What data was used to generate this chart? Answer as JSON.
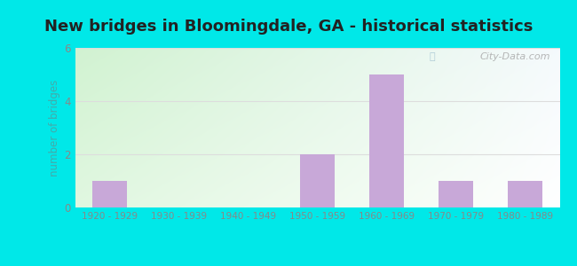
{
  "title": "New bridges in Bloomingdale, GA - historical statistics",
  "categories": [
    "1920 - 1929",
    "1930 - 1939",
    "1940 - 1949",
    "1950 - 1959",
    "1960 - 1969",
    "1970 - 1979",
    "1980 - 1989"
  ],
  "values": [
    1,
    0,
    0,
    2,
    5,
    1,
    1
  ],
  "bar_color": "#c8a8d8",
  "ylabel": "number of bridges",
  "ylabel_color": "#44aaaa",
  "ylim": [
    0,
    6
  ],
  "yticks": [
    0,
    2,
    4,
    6
  ],
  "outer_bg": "#00e8e8",
  "plot_bg_topleft": [
    0.82,
    0.95,
    0.82
  ],
  "plot_bg_topright": [
    0.96,
    0.98,
    0.99
  ],
  "plot_bg_bottomleft": [
    0.88,
    0.97,
    0.88
  ],
  "plot_bg_bottomright": [
    1.0,
    1.0,
    1.0
  ],
  "title_fontsize": 13,
  "title_color": "#222222",
  "tick_color": "#888888",
  "grid_color": "#dddddd",
  "watermark": "City-Data.com",
  "watermark_color": "#aaaaaa"
}
